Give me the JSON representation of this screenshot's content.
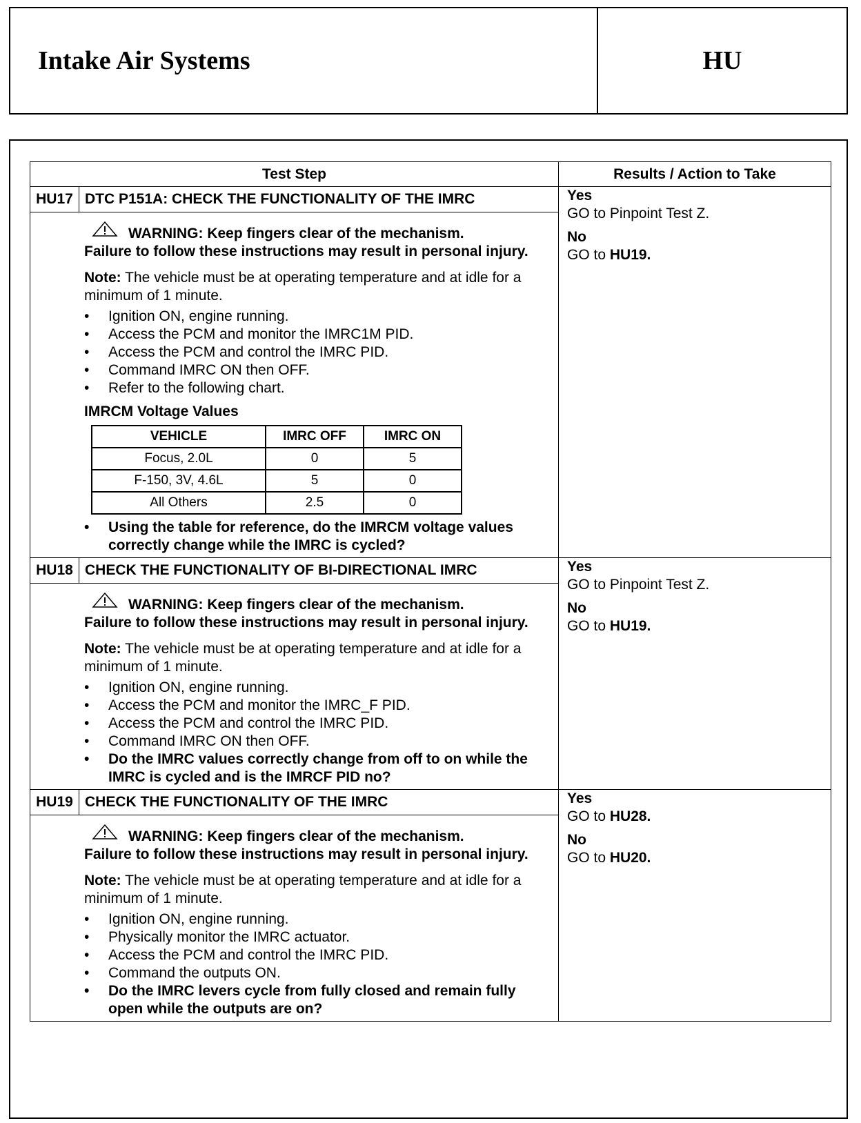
{
  "header": {
    "title": "Intake Air Systems",
    "section": "HU"
  },
  "table": {
    "col_test_step": "Test Step",
    "col_results": "Results / Action to Take"
  },
  "steps": [
    {
      "id": "HU17",
      "title": "DTC P151A: CHECK THE FUNCTIONALITY OF THE IMRC",
      "warning_1": "WARNING: Keep fingers clear of the  mechanism.",
      "warning_2": "Failure to follow these instructions may result in personal injury.",
      "note_label": "Note:",
      "note_text": " The vehicle must be at operating temperature and at idle for a minimum of 1 minute.",
      "bullets": [
        "Ignition ON, engine running.",
        "Access the PCM and monitor the IMRC1M PID.",
        "Access the PCM and control the IMRC PID.",
        "Command IMRC ON then OFF.",
        "Refer to the following chart."
      ],
      "voltage_table": {
        "title": "IMRCM Voltage Values",
        "headers": [
          "VEHICLE",
          "IMRC OFF",
          "IMRC ON"
        ],
        "rows": [
          [
            "Focus, 2.0L",
            "0",
            "5"
          ],
          [
            "F-150, 3V, 4.6L",
            "5",
            "0"
          ],
          [
            "All Others",
            "2.5",
            "0"
          ]
        ]
      },
      "question": "Using the table for reference, do the IMRCM voltage values correctly change while the IMRC is cycled?",
      "yes_label": "Yes",
      "yes_action_pre": "GO to Pinpoint Test Z.",
      "yes_action_target": "",
      "no_label": "No",
      "no_action_pre": "GO to ",
      "no_action_target": "HU19."
    },
    {
      "id": "HU18",
      "title": "CHECK THE FUNCTIONALITY OF BI-DIRECTIONAL IMRC",
      "warning_1": "WARNING: Keep fingers clear of the  mechanism.",
      "warning_2": "Failure to follow these instructions may result in personal injury.",
      "note_label": "Note:",
      "note_text": " The vehicle must be at operating temperature and at idle for a minimum of 1 minute.",
      "bullets": [
        "Ignition ON, engine running.",
        "Access the PCM and monitor the IMRC_F PID.",
        "Access the PCM and control the IMRC PID.",
        "Command IMRC ON then OFF."
      ],
      "question": "Do the IMRC values correctly change from off to on while the IMRC is cycled and is the IMRCF PID no?",
      "yes_label": "Yes",
      "yes_action_pre": "GO to Pinpoint Test Z.",
      "yes_action_target": "",
      "no_label": "No",
      "no_action_pre": "GO to ",
      "no_action_target": "HU19."
    },
    {
      "id": "HU19",
      "title": "CHECK THE FUNCTIONALITY OF THE IMRC",
      "warning_1": "WARNING: Keep fingers clear of the  mechanism.",
      "warning_2": "Failure to follow these instructions may result in personal injury.",
      "note_label": "Note:",
      "note_text": " The vehicle must be at operating temperature and at idle for a minimum of 1 minute.",
      "bullets": [
        "Ignition ON, engine running.",
        "Physically monitor the IMRC actuator.",
        "Access the PCM and control the IMRC PID.",
        "Command the outputs ON."
      ],
      "question": "Do the IMRC levers cycle from fully closed and remain fully open while the outputs are on?",
      "yes_label": "Yes",
      "yes_action_pre": "GO to ",
      "yes_action_target": "HU28.",
      "no_label": "No",
      "no_action_pre": "GO to ",
      "no_action_target": "HU20."
    }
  ]
}
